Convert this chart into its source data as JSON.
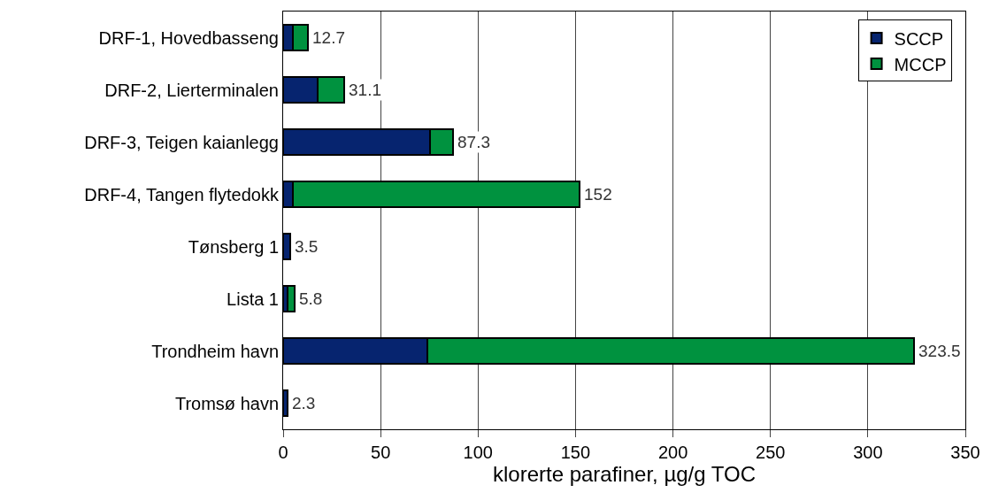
{
  "chart_data": {
    "type": "bar",
    "orientation": "horizontal",
    "stacked": true,
    "xlabel": "klorerte parafiner, µg/g TOC",
    "categories": [
      "DRF-1, Hovedbasseng",
      "DRF-2, Lierterminalen",
      "DRF-3, Teigen kaianlegg",
      "DRF-4, Tangen flytedokk",
      "Tønsberg 1",
      "Lista 1",
      "Trondheim havn",
      "Tromsø havn"
    ],
    "series": [
      {
        "name": "SCCP",
        "color": "#06246f",
        "values": [
          5.2,
          17.5,
          75.3,
          5.2,
          3.5,
          2.1,
          73.8,
          2.3
        ]
      },
      {
        "name": "MCCP",
        "color": "#00923f",
        "values": [
          7.5,
          13.6,
          12.0,
          146.8,
          null,
          3.7,
          249.7,
          null
        ]
      }
    ],
    "totals": [
      "12.7",
      "31.1",
      "87.3",
      "152",
      "3.5",
      "5.8",
      "323.5",
      "2.3"
    ],
    "xlim": [
      0,
      350
    ],
    "xticks": [
      0,
      50,
      100,
      150,
      200,
      250,
      300,
      350
    ],
    "grid": "x",
    "legend": "top right"
  }
}
